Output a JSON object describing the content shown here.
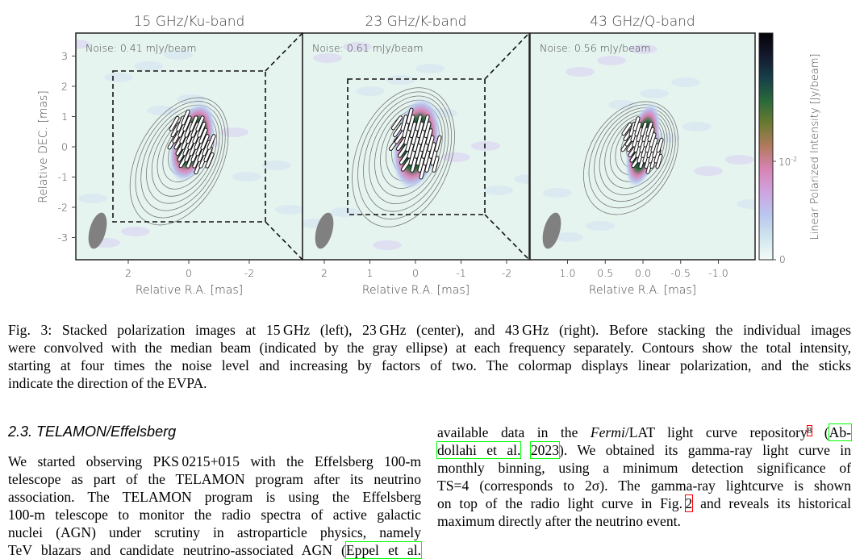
{
  "figure": {
    "panels": [
      {
        "title": "15 GHz/Ku-band",
        "noise": "Noise: 0.41 mJy/beam",
        "xticks": [
          "2",
          "0",
          "-2"
        ],
        "xtick_values": [
          2,
          0,
          -2
        ],
        "xlabel": "Relative R.A. [mas]"
      },
      {
        "title": "23 GHz/K-band",
        "noise": "Noise: 0.61 mJy/beam",
        "xticks": [
          "2",
          "1",
          "0",
          "-1",
          "-2"
        ],
        "xtick_values": [
          2,
          1,
          0,
          -1,
          -2
        ],
        "xlabel": "Relative R.A. [mas]"
      },
      {
        "title": "43 GHz/Q-band",
        "noise": "Noise: 0.56 mJy/beam",
        "xticks": [
          "1.0",
          "0.5",
          "0.0",
          "-0.5",
          "-1.0"
        ],
        "xtick_values": [
          1,
          0.5,
          0,
          -0.5,
          -1
        ],
        "xlabel": "Relative R.A. [mas]"
      }
    ],
    "ylabel": "Relative DEC. [mas]",
    "yticks": [
      "3",
      "2",
      "1",
      "0",
      "-1",
      "-2",
      "-3"
    ],
    "ytick_values": [
      3,
      2,
      1,
      0,
      -1,
      -2,
      -3
    ],
    "colorbar": {
      "label": "Linear Polarized Intensity [Jy/beam]",
      "tick_top": "10",
      "tick_top_exp": "-2",
      "tick_zero": "0",
      "colors": [
        "#f4fbf8",
        "#cfe6ee",
        "#b9c6ef",
        "#cfa3e0",
        "#d883b4",
        "#b27a5e",
        "#6c7a30",
        "#2a6a3a",
        "#173f4a",
        "#14182e",
        "#050308"
      ]
    },
    "beam_color": "#808080"
  },
  "caption": [
    "Fig. 3: Stacked polarization images at 15 GHz (left), 23 GHz (center), and 43 GHz (right). Before stacking the individual images",
    "were convolved with the median beam (indicated by the gray ellipse) at each frequency separately. Contours show the total intensity,",
    "starting at four times the noise level and increasing by factors of two. The colormap displays linear polarization, and the sticks",
    "indicate the direction of the EVPA."
  ],
  "section": {
    "heading": "2.3. TELAMON/Effelsberg",
    "left_lines": [
      "We started observing PKS 0215+015 with the Effelsberg 100-m",
      "telescope as part of the TELAMON program after its neutrino",
      "association. The TELAMON program is using the Effelsberg",
      "100-m telescope to monitor the radio spectra of active galactic",
      "nuclei (AGN) under scrutiny in astroparticle physics, namely"
    ],
    "left_cut_line": "TeV blazars and candidate neutrino-associated AGN (",
    "left_cut_cite": "Eppel et al.",
    "right": {
      "l1a": "available data in the ",
      "l1_italic": "Fermi",
      "l1b": "/LAT light curve repository",
      "l1_footnote": "8",
      "l1c": " (",
      "l1_cite": "Ab-",
      "l2_cite_a": "dollahi et al.",
      "l2_cite_b": "2023",
      "l2b": "). We obtained its gamma-ray light curve in",
      "l3": "monthly binning, using a minimum detection significance of",
      "l4": "TS=4 (corresponds to 2σ). The gamma-ray lightcurve is shown",
      "l5a": "on top of the radio light curve in Fig. ",
      "l5_ref": "2",
      "l5b": " and reveals its historical",
      "l6": "maximum directly after the neutrino event."
    }
  }
}
